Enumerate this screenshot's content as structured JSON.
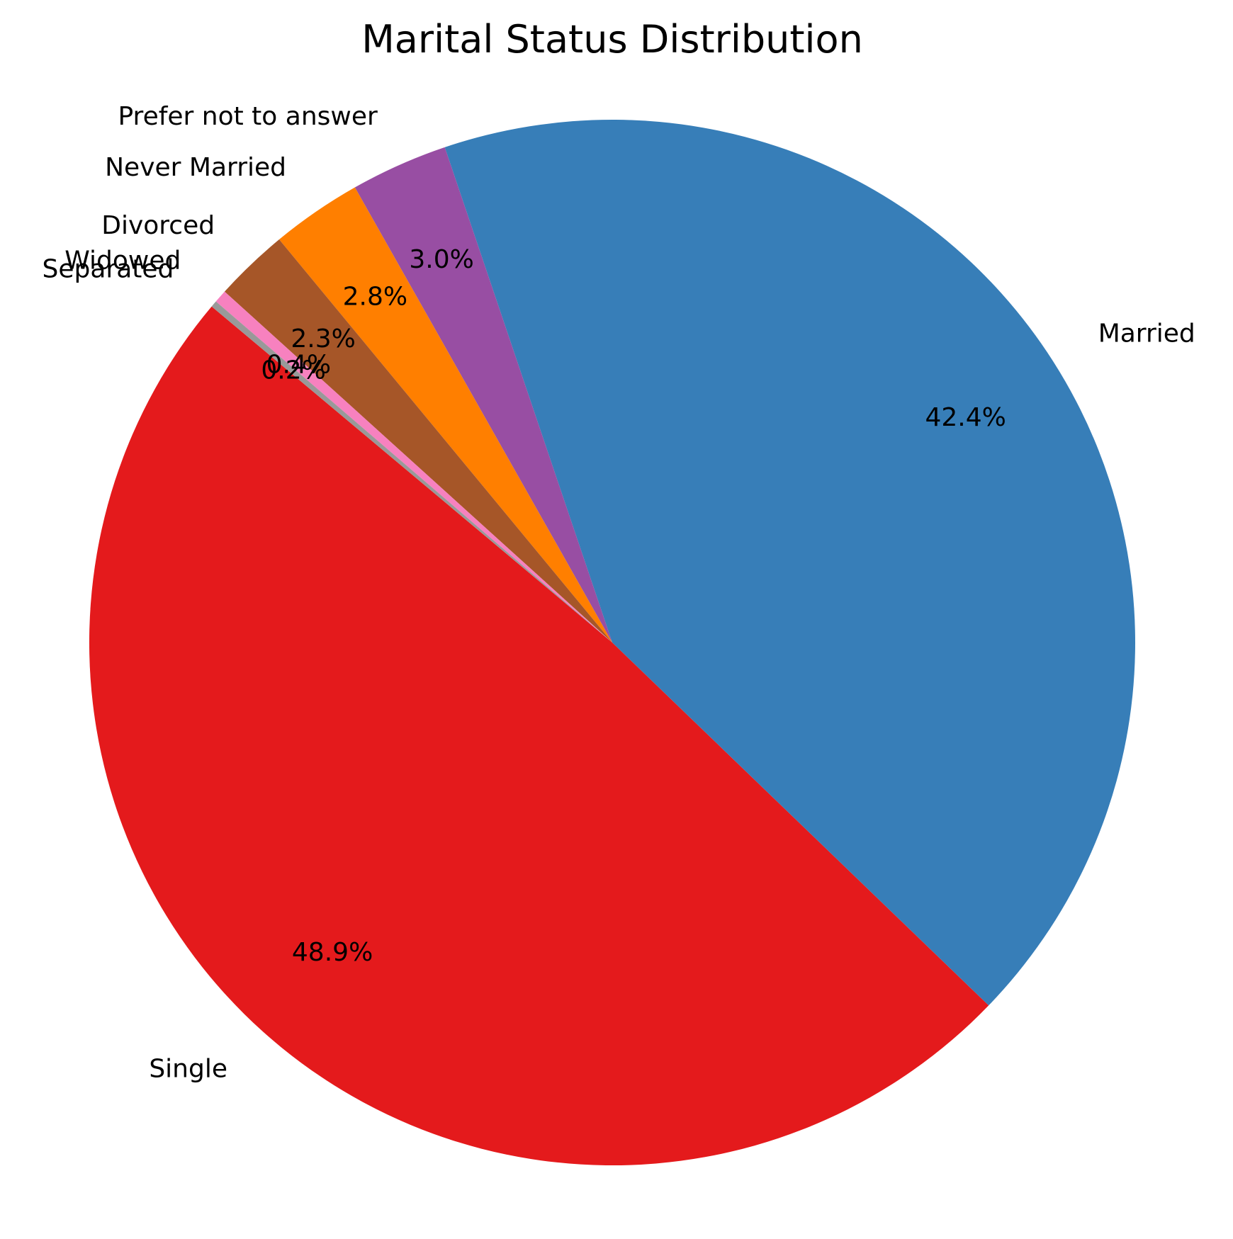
{
  "chart_data": {
    "type": "pie",
    "title": "Marital Status Distribution",
    "start_angle_deg": 140,
    "direction": "counterclockwise",
    "slices": [
      {
        "label": "Single",
        "value": 48.9,
        "pct_label": "48.9%",
        "color": "#e41a1c"
      },
      {
        "label": "Married",
        "value": 42.4,
        "pct_label": "42.4%",
        "color": "#377eb8"
      },
      {
        "label": "Prefer not to answer",
        "value": 3.0,
        "pct_label": "3.0%",
        "color": "#984ea3"
      },
      {
        "label": "Never Married",
        "value": 2.8,
        "pct_label": "2.8%",
        "color": "#ff7f00"
      },
      {
        "label": "Divorced",
        "value": 2.3,
        "pct_label": "2.3%",
        "color": "#a65628"
      },
      {
        "label": "Widowed",
        "value": 0.4,
        "pct_label": "0.4%",
        "color": "#f781bf"
      },
      {
        "label": "Separated",
        "value": 0.2,
        "pct_label": "0.2%",
        "color": "#999999"
      }
    ]
  }
}
